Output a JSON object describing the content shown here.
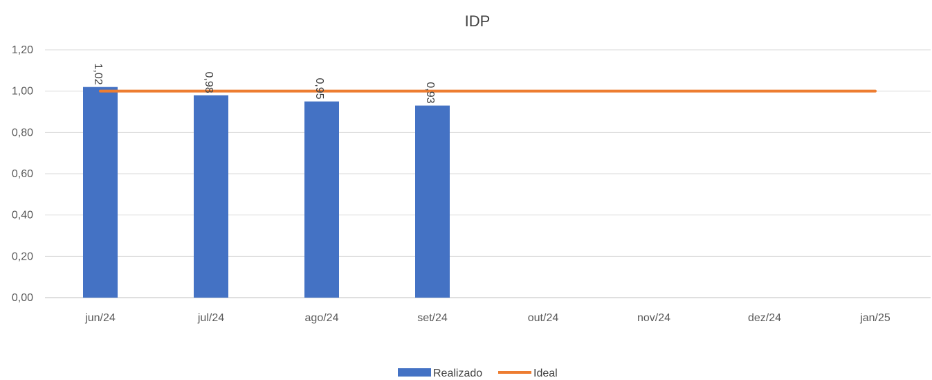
{
  "chart_data": {
    "type": "bar",
    "title": "IDP",
    "xlabel": "",
    "ylabel": "",
    "categories": [
      "jun/24",
      "jul/24",
      "ago/24",
      "set/24",
      "out/24",
      "nov/24",
      "dez/24",
      "jan/25"
    ],
    "ylim": [
      0,
      1.2
    ],
    "yticks": [
      "0,00",
      "0,20",
      "0,40",
      "0,60",
      "0,80",
      "1,00",
      "1,20"
    ],
    "ytick_values": [
      0,
      0.2,
      0.4,
      0.6,
      0.8,
      1.0,
      1.2
    ],
    "grid": true,
    "legend_position": "bottom",
    "series": [
      {
        "name": "Realizado",
        "kind": "bar",
        "color": "#4472C4",
        "values": [
          1.02,
          0.98,
          0.95,
          0.93,
          null,
          null,
          null,
          null
        ],
        "labels": [
          "1,02",
          "0,98",
          "0,95",
          "0,93",
          null,
          null,
          null,
          null
        ]
      },
      {
        "name": "Ideal",
        "kind": "line",
        "color": "#ED7D31",
        "values": [
          1.0,
          1.0,
          1.0,
          1.0,
          1.0,
          1.0,
          1.0,
          1.0
        ]
      }
    ]
  }
}
